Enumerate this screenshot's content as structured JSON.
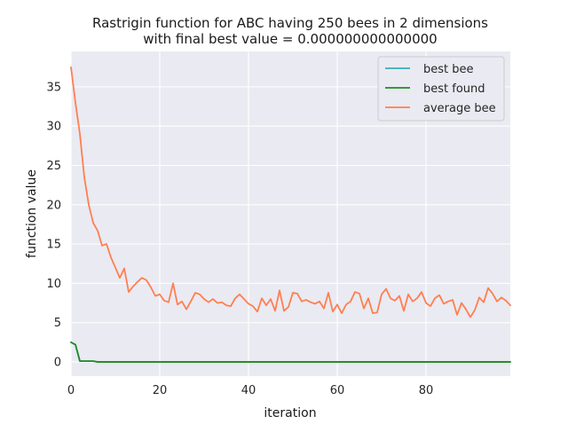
{
  "chart_data": {
    "type": "line",
    "title_line1": "Rastrigin function for ABC having 250 bees in 2 dimensions",
    "title_line2": "with final best value = 0.000000000000000",
    "xlabel": "iteration",
    "ylabel": "function value",
    "xlim": [
      0,
      99
    ],
    "ylim": [
      -1.8,
      39.5
    ],
    "xticks": [
      0,
      20,
      40,
      60,
      80
    ],
    "yticks": [
      0,
      5,
      10,
      15,
      20,
      25,
      30,
      35
    ],
    "grid": true,
    "legend_position": "top-right",
    "series": [
      {
        "name": "best bee",
        "color": "#30b0b8",
        "x": [
          0,
          1,
          2,
          3,
          4,
          5,
          6,
          7,
          8,
          9,
          10,
          11,
          12,
          13,
          14,
          15,
          16,
          17,
          18,
          19,
          20,
          21,
          22,
          23,
          24,
          25,
          26,
          27,
          28,
          29,
          30,
          31,
          32,
          33,
          34,
          35,
          36,
          37,
          38,
          39,
          40,
          41,
          42,
          43,
          44,
          45,
          46,
          47,
          48,
          49,
          50,
          51,
          52,
          53,
          54,
          55,
          56,
          57,
          58,
          59,
          60,
          61,
          62,
          63,
          64,
          65,
          66,
          67,
          68,
          69,
          70,
          71,
          72,
          73,
          74,
          75,
          76,
          77,
          78,
          79,
          80,
          81,
          82,
          83,
          84,
          85,
          86,
          87,
          88,
          89,
          90,
          91,
          92,
          93,
          94,
          95,
          96,
          97,
          98,
          99
        ],
        "y": [
          2.5,
          2.2,
          0.1,
          0.1,
          0.1,
          0.1,
          0,
          0,
          0,
          0,
          0,
          0,
          0,
          0,
          0,
          0,
          0,
          0,
          0,
          0,
          0,
          0,
          0,
          0,
          0,
          0,
          0,
          0,
          0,
          0,
          0,
          0,
          0,
          0,
          0,
          0,
          0,
          0,
          0,
          0,
          0,
          0,
          0,
          0,
          0,
          0,
          0,
          0,
          0,
          0,
          0,
          0,
          0,
          0,
          0,
          0,
          0,
          0,
          0,
          0,
          0,
          0,
          0,
          0,
          0,
          0,
          0,
          0,
          0,
          0,
          0,
          0,
          0,
          0,
          0,
          0,
          0,
          0,
          0,
          0,
          0,
          0,
          0,
          0,
          0,
          0,
          0,
          0,
          0,
          0,
          0,
          0,
          0,
          0,
          0,
          0,
          0,
          0,
          0,
          0
        ]
      },
      {
        "name": "best found",
        "color": "#228b22",
        "x": [
          0,
          1,
          2,
          3,
          4,
          5,
          6,
          7,
          8,
          9,
          10,
          11,
          12,
          13,
          14,
          15,
          16,
          17,
          18,
          19,
          20,
          21,
          22,
          23,
          24,
          25,
          26,
          27,
          28,
          29,
          30,
          31,
          32,
          33,
          34,
          35,
          36,
          37,
          38,
          39,
          40,
          41,
          42,
          43,
          44,
          45,
          46,
          47,
          48,
          49,
          50,
          51,
          52,
          53,
          54,
          55,
          56,
          57,
          58,
          59,
          60,
          61,
          62,
          63,
          64,
          65,
          66,
          67,
          68,
          69,
          70,
          71,
          72,
          73,
          74,
          75,
          76,
          77,
          78,
          79,
          80,
          81,
          82,
          83,
          84,
          85,
          86,
          87,
          88,
          89,
          90,
          91,
          92,
          93,
          94,
          95,
          96,
          97,
          98,
          99
        ],
        "y": [
          2.5,
          2.2,
          0.1,
          0.1,
          0.1,
          0.1,
          0,
          0,
          0,
          0,
          0,
          0,
          0,
          0,
          0,
          0,
          0,
          0,
          0,
          0,
          0,
          0,
          0,
          0,
          0,
          0,
          0,
          0,
          0,
          0,
          0,
          0,
          0,
          0,
          0,
          0,
          0,
          0,
          0,
          0,
          0,
          0,
          0,
          0,
          0,
          0,
          0,
          0,
          0,
          0,
          0,
          0,
          0,
          0,
          0,
          0,
          0,
          0,
          0,
          0,
          0,
          0,
          0,
          0,
          0,
          0,
          0,
          0,
          0,
          0,
          0,
          0,
          0,
          0,
          0,
          0,
          0,
          0,
          0,
          0,
          0,
          0,
          0,
          0,
          0,
          0,
          0,
          0,
          0,
          0,
          0,
          0,
          0,
          0,
          0,
          0,
          0,
          0,
          0,
          0
        ]
      },
      {
        "name": "average bee",
        "color": "#ff7f50",
        "x": [
          0,
          1,
          2,
          3,
          4,
          5,
          6,
          7,
          8,
          9,
          10,
          11,
          12,
          13,
          14,
          15,
          16,
          17,
          18,
          19,
          20,
          21,
          22,
          23,
          24,
          25,
          26,
          27,
          28,
          29,
          30,
          31,
          32,
          33,
          34,
          35,
          36,
          37,
          38,
          39,
          40,
          41,
          42,
          43,
          44,
          45,
          46,
          47,
          48,
          49,
          50,
          51,
          52,
          53,
          54,
          55,
          56,
          57,
          58,
          59,
          60,
          61,
          62,
          63,
          64,
          65,
          66,
          67,
          68,
          69,
          70,
          71,
          72,
          73,
          74,
          75,
          76,
          77,
          78,
          79,
          80,
          81,
          82,
          83,
          84,
          85,
          86,
          87,
          88,
          89,
          90,
          91,
          92,
          93,
          94,
          95,
          96,
          97,
          98,
          99
        ],
        "y": [
          37.5,
          33,
          29,
          23.5,
          20,
          17.7,
          16.7,
          14.8,
          15,
          13.3,
          12,
          10.7,
          11.9,
          8.9,
          9.6,
          10.2,
          10.7,
          10.4,
          9.5,
          8.4,
          8.6,
          7.8,
          7.6,
          10,
          7.3,
          7.7,
          6.7,
          7.7,
          8.8,
          8.6,
          8,
          7.6,
          8,
          7.5,
          7.6,
          7.2,
          7.1,
          8.1,
          8.6,
          8,
          7.4,
          7.1,
          6.4,
          8.1,
          7.2,
          8,
          6.5,
          9.1,
          6.5,
          7,
          8.8,
          8.7,
          7.7,
          7.9,
          7.6,
          7.4,
          7.7,
          6.8,
          8.8,
          6.4,
          7.3,
          6.2,
          7.3,
          7.7,
          8.9,
          8.7,
          6.8,
          8.1,
          6.2,
          6.3,
          8.6,
          9.3,
          8.1,
          7.8,
          8.4,
          6.5,
          8.6,
          7.7,
          8.1,
          8.9,
          7.5,
          7.1,
          8.1,
          8.5,
          7.4,
          7.7,
          7.9,
          6,
          7.5,
          6.7,
          5.7,
          6.6,
          8.2,
          7.6,
          9.4,
          8.7,
          7.7,
          8.2,
          7.8,
          7.2
        ]
      }
    ]
  }
}
